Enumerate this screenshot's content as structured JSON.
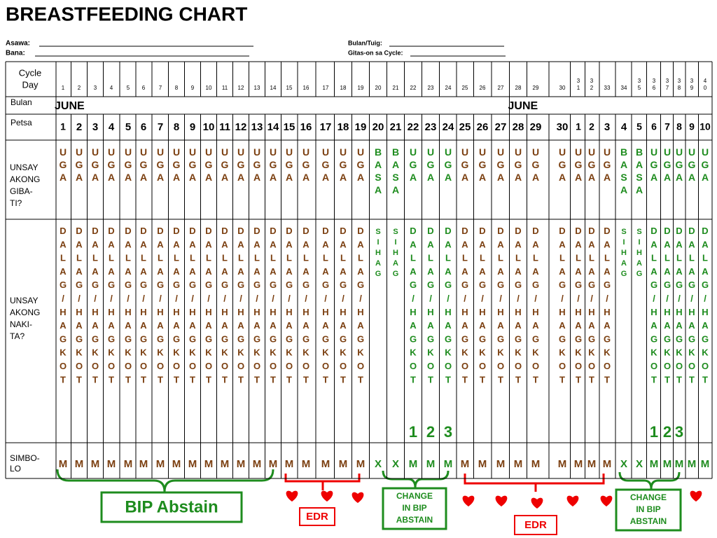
{
  "header": {
    "title": "BREASTFEEDING CHART",
    "fields": {
      "asawa": "Asawa:",
      "bana": "Bana:",
      "bulan_tuig": "Bulan/Tuig:",
      "gitas_on": "Gitas-on sa Cycle:"
    }
  },
  "table": {
    "row_labels": {
      "cycle_day": [
        "Cycle",
        "Day"
      ],
      "bulan": "Bulan",
      "petsa": "Petsa",
      "gibati": [
        "UNSAY",
        "AKONG",
        "GIBA-",
        "TI?"
      ],
      "nakita": [
        "UNSAY",
        "AKONG",
        "NAKI-",
        "TA?"
      ],
      "simbolo": [
        "SIMBO-",
        "LO"
      ]
    },
    "month_labels": [
      "JUNE",
      "JUNE"
    ],
    "cycle_days": [
      1,
      2,
      3,
      4,
      5,
      6,
      7,
      8,
      9,
      10,
      11,
      12,
      13,
      14,
      15,
      16,
      17,
      18,
      19,
      20,
      21,
      22,
      23,
      24,
      25,
      26,
      27,
      28,
      29,
      30,
      31,
      32,
      33,
      34,
      35,
      36,
      37,
      38,
      39,
      40
    ],
    "petsa": [
      1,
      2,
      3,
      4,
      5,
      6,
      7,
      8,
      9,
      10,
      11,
      12,
      13,
      14,
      15,
      16,
      17,
      18,
      19,
      20,
      21,
      22,
      23,
      24,
      25,
      26,
      27,
      28,
      29,
      30,
      1,
      2,
      3,
      4,
      5,
      6,
      7,
      8,
      9,
      10
    ],
    "gibati": [
      "UGA",
      "UGA",
      "UGA",
      "UGA",
      "UGA",
      "UGA",
      "UGA",
      "UGA",
      "UGA",
      "UGA",
      "UGA",
      "UGA",
      "UGA",
      "UGA",
      "UGA",
      "UGA",
      "UGA",
      "UGA",
      "UGA",
      "BASA",
      "BASA",
      "UGA",
      "UGA",
      "UGA",
      "UGA",
      "UGA",
      "UGA",
      "UGA",
      "UGA",
      "UGA",
      "UGA",
      "UGA",
      "UGA",
      "BASA",
      "BASA",
      "UGA",
      "UGA",
      "UGA",
      "UGA",
      "UGA"
    ],
    "nakita": [
      "DALAG/HAGKOT",
      "DALAG/HAGKOT",
      "DALAG/HAGKOT",
      "DALAG/HAGKOT",
      "DALAG/HAGKOT",
      "DALAG/HAGKOT",
      "DALAG/HAGKOT",
      "DALAG/HAGKOT",
      "DALAG/HAGKOT",
      "DALAG/HAGKOT",
      "DALAG/HAGKOT",
      "DALAG/HAGKOT",
      "DALAG/HAGKOT",
      "DALAG/HAGKOT",
      "DALAG/HAGKOT",
      "DALAG/HAGKOT",
      "DALAG/HAGKOT",
      "DALAG/HAGKOT",
      "DALAG/HAGKOT",
      "SIHAG",
      "SIHAG",
      "DALAG/HAGKOT",
      "DALAG/HAGKOT",
      "DALAG/HAGKOT",
      "DALAG/HAGKOT",
      "DALAG/HAGKOT",
      "DALAG/HAGKOT",
      "DALAG/HAGKOT",
      "DALAG/HAGKOT",
      "DALAG/HAGKOT",
      "DALAG/HAGKOT",
      "DALAG/HAGKOT",
      "DALAG/HAGKOT",
      "SIHAG",
      "SIHAG",
      "DALAG/HAGKOT",
      "DALAG/HAGKOT",
      "DALAG/HAGKOT",
      "DALAG/HAGKOT",
      "DALAG/HAGKOT"
    ],
    "markers": [
      null,
      null,
      null,
      null,
      null,
      null,
      null,
      null,
      null,
      null,
      null,
      null,
      null,
      null,
      null,
      null,
      null,
      null,
      null,
      null,
      null,
      1,
      2,
      3,
      null,
      null,
      null,
      null,
      null,
      null,
      null,
      null,
      null,
      null,
      null,
      1,
      2,
      3,
      null,
      null
    ],
    "simbolo": [
      "M",
      "M",
      "M",
      "M",
      "M",
      "M",
      "M",
      "M",
      "M",
      "M",
      "M",
      "M",
      "M",
      "M",
      "M",
      "M",
      "M",
      "M",
      "M",
      "X",
      "X",
      "M",
      "M",
      "M",
      "M",
      "M",
      "M",
      "M",
      "M",
      "M",
      "M",
      "M",
      "M",
      "X",
      "X",
      "M",
      "M",
      "M",
      "M",
      "M"
    ],
    "colors": [
      "#7b3f10",
      "#7b3f10",
      "#7b3f10",
      "#7b3f10",
      "#7b3f10",
      "#7b3f10",
      "#7b3f10",
      "#7b3f10",
      "#7b3f10",
      "#7b3f10",
      "#7b3f10",
      "#7b3f10",
      "#7b3f10",
      "#7b3f10",
      "#7b3f10",
      "#7b3f10",
      "#7b3f10",
      "#7b3f10",
      "#7b3f10",
      "#1e8c1e",
      "#1e8c1e",
      "#1e8c1e",
      "#1e8c1e",
      "#1e8c1e",
      "#7b3f10",
      "#7b3f10",
      "#7b3f10",
      "#7b3f10",
      "#7b3f10",
      "#7b3f10",
      "#7b3f10",
      "#7b3f10",
      "#7b3f10",
      "#1e8c1e",
      "#1e8c1e",
      "#1e8c1e",
      "#1e8c1e",
      "#1e8c1e",
      "#1e8c1e",
      "#1e8c1e"
    ]
  },
  "annotations": {
    "bip_abstain": "BIP Abstain",
    "edr": [
      "EDR",
      "EDR"
    ],
    "change": [
      [
        "CHANGE",
        "IN BIP",
        "ABSTAIN"
      ],
      [
        "CHANGE",
        "IN BIP",
        "ABSTAIN"
      ]
    ]
  }
}
